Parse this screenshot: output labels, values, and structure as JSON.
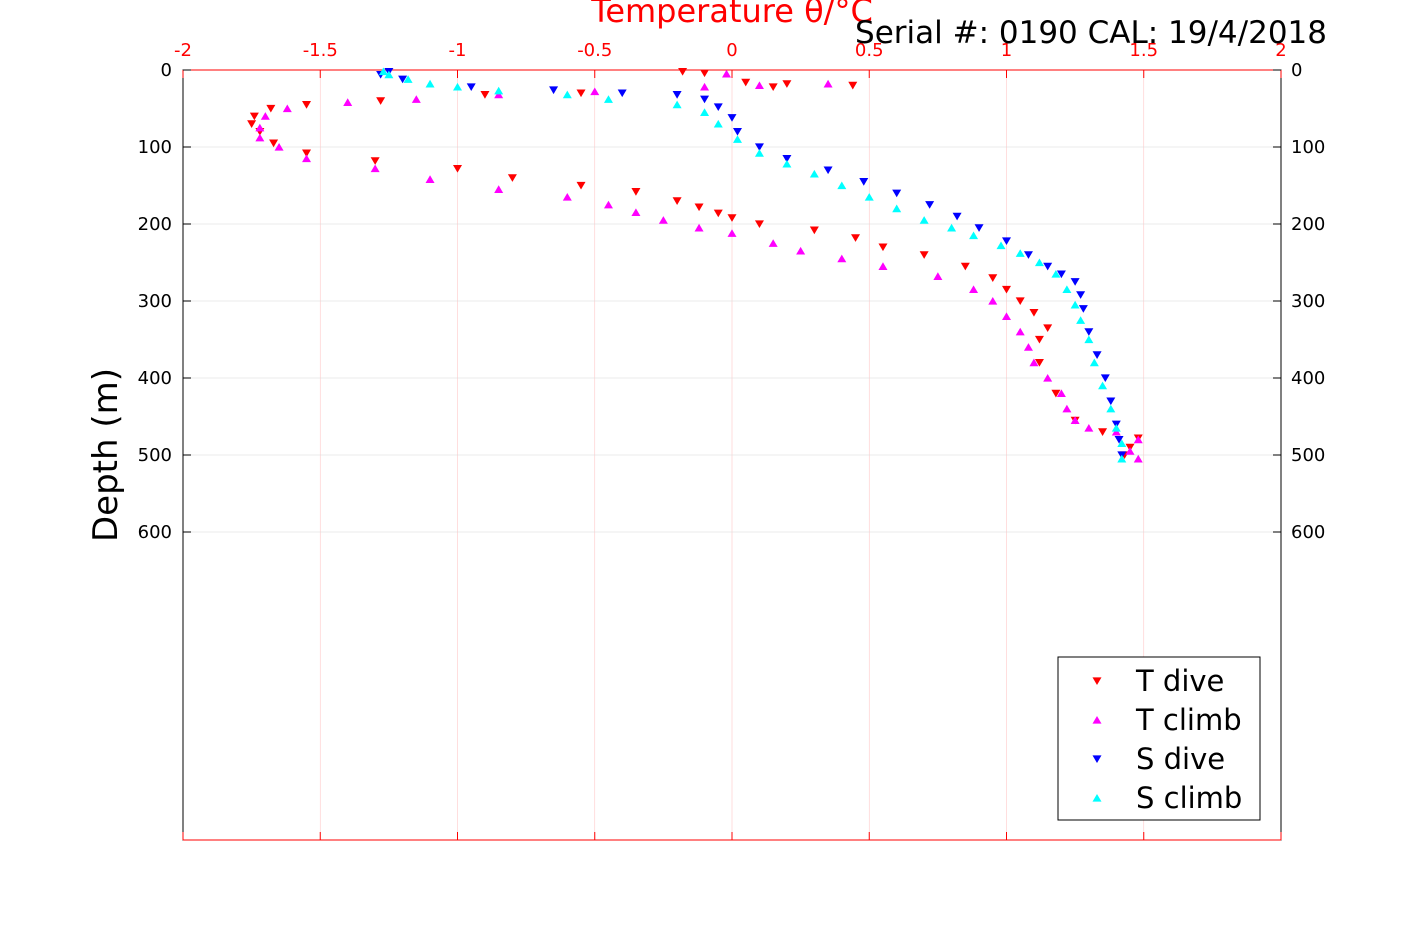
{
  "chart_data": {
    "type": "scatter",
    "subtitle": "Serial #: 0190  CAL: 19/4/2018",
    "xlabel": "Temperature θ/°C",
    "ylabel": "Depth (m)",
    "xlim": [
      -2,
      2
    ],
    "ylim": [
      0,
      1000
    ],
    "y_reversed": true,
    "x_ticks": [
      "-2",
      "-1.5",
      "-1",
      "-0.5",
      "0",
      "0.5",
      "1",
      "1.5",
      "2"
    ],
    "y_ticks": [
      "0",
      "100",
      "200",
      "300",
      "400",
      "500",
      "600"
    ],
    "grid": true,
    "legend_position": "bottom-right",
    "series": [
      {
        "name": "T dive",
        "color": "#ff0000",
        "marker": "triangle-down",
        "points": [
          [
            -0.18,
            2
          ],
          [
            -0.1,
            4
          ],
          [
            0.05,
            16
          ],
          [
            0.2,
            18
          ],
          [
            0.44,
            20
          ],
          [
            0.15,
            22
          ],
          [
            -0.55,
            30
          ],
          [
            -0.9,
            32
          ],
          [
            -1.28,
            40
          ],
          [
            -1.55,
            45
          ],
          [
            -1.68,
            50
          ],
          [
            -1.74,
            60
          ],
          [
            -1.75,
            70
          ],
          [
            -1.72,
            80
          ],
          [
            -1.67,
            95
          ],
          [
            -1.55,
            108
          ],
          [
            -1.3,
            118
          ],
          [
            -1.0,
            128
          ],
          [
            -0.8,
            140
          ],
          [
            -0.55,
            150
          ],
          [
            -0.35,
            158
          ],
          [
            -0.2,
            170
          ],
          [
            -0.12,
            178
          ],
          [
            -0.05,
            186
          ],
          [
            0.0,
            192
          ],
          [
            0.1,
            200
          ],
          [
            0.3,
            208
          ],
          [
            0.45,
            218
          ],
          [
            0.55,
            230
          ],
          [
            0.7,
            240
          ],
          [
            0.85,
            255
          ],
          [
            0.95,
            270
          ],
          [
            1.0,
            285
          ],
          [
            1.05,
            300
          ],
          [
            1.1,
            315
          ],
          [
            1.15,
            335
          ],
          [
            1.12,
            350
          ],
          [
            1.12,
            380
          ],
          [
            1.18,
            420
          ],
          [
            1.25,
            455
          ],
          [
            1.35,
            470
          ],
          [
            1.48,
            478
          ],
          [
            1.45,
            490
          ],
          [
            1.43,
            500
          ]
        ]
      },
      {
        "name": "T climb",
        "color": "#ff00ff",
        "marker": "triangle-up",
        "points": [
          [
            1.48,
            505
          ],
          [
            1.45,
            495
          ],
          [
            1.48,
            480
          ],
          [
            1.4,
            470
          ],
          [
            1.3,
            465
          ],
          [
            1.25,
            455
          ],
          [
            1.22,
            440
          ],
          [
            1.2,
            420
          ],
          [
            1.15,
            400
          ],
          [
            1.1,
            380
          ],
          [
            1.08,
            360
          ],
          [
            1.05,
            340
          ],
          [
            1.0,
            320
          ],
          [
            0.95,
            300
          ],
          [
            0.88,
            285
          ],
          [
            0.75,
            268
          ],
          [
            0.55,
            255
          ],
          [
            0.4,
            245
          ],
          [
            0.25,
            235
          ],
          [
            0.15,
            225
          ],
          [
            0.0,
            212
          ],
          [
            -0.12,
            205
          ],
          [
            -0.25,
            195
          ],
          [
            -0.35,
            185
          ],
          [
            -0.45,
            175
          ],
          [
            -0.6,
            165
          ],
          [
            -0.85,
            155
          ],
          [
            -1.1,
            142
          ],
          [
            -1.3,
            128
          ],
          [
            -1.55,
            115
          ],
          [
            -1.65,
            100
          ],
          [
            -1.72,
            88
          ],
          [
            -1.72,
            75
          ],
          [
            -1.7,
            60
          ],
          [
            -1.62,
            50
          ],
          [
            -1.4,
            42
          ],
          [
            -1.15,
            38
          ],
          [
            -0.85,
            32
          ],
          [
            -0.5,
            28
          ],
          [
            -0.1,
            22
          ],
          [
            0.1,
            20
          ],
          [
            0.35,
            18
          ],
          [
            -0.02,
            5
          ]
        ]
      },
      {
        "name": "S dive",
        "color": "#0000ff",
        "marker": "triangle-down",
        "points": [
          [
            -1.25,
            2
          ],
          [
            -1.28,
            6
          ],
          [
            -1.2,
            12
          ],
          [
            -0.95,
            22
          ],
          [
            -0.65,
            26
          ],
          [
            -0.4,
            30
          ],
          [
            -0.2,
            32
          ],
          [
            -0.1,
            38
          ],
          [
            -0.05,
            48
          ],
          [
            0.0,
            62
          ],
          [
            0.02,
            80
          ],
          [
            0.1,
            100
          ],
          [
            0.2,
            115
          ],
          [
            0.35,
            130
          ],
          [
            0.48,
            145
          ],
          [
            0.6,
            160
          ],
          [
            0.72,
            175
          ],
          [
            0.82,
            190
          ],
          [
            0.9,
            205
          ],
          [
            1.0,
            222
          ],
          [
            1.08,
            240
          ],
          [
            1.15,
            255
          ],
          [
            1.2,
            265
          ],
          [
            1.25,
            275
          ],
          [
            1.27,
            292
          ],
          [
            1.28,
            310
          ],
          [
            1.3,
            340
          ],
          [
            1.33,
            370
          ],
          [
            1.36,
            400
          ],
          [
            1.38,
            430
          ],
          [
            1.4,
            460
          ],
          [
            1.41,
            480
          ],
          [
            1.42,
            500
          ]
        ]
      },
      {
        "name": "S climb",
        "color": "#00ffff",
        "marker": "triangle-up",
        "points": [
          [
            1.42,
            505
          ],
          [
            1.42,
            485
          ],
          [
            1.4,
            465
          ],
          [
            1.38,
            440
          ],
          [
            1.35,
            410
          ],
          [
            1.32,
            380
          ],
          [
            1.3,
            350
          ],
          [
            1.27,
            325
          ],
          [
            1.25,
            305
          ],
          [
            1.22,
            285
          ],
          [
            1.18,
            265
          ],
          [
            1.12,
            250
          ],
          [
            1.05,
            238
          ],
          [
            0.98,
            228
          ],
          [
            0.88,
            215
          ],
          [
            0.8,
            205
          ],
          [
            0.7,
            195
          ],
          [
            0.6,
            180
          ],
          [
            0.5,
            165
          ],
          [
            0.4,
            150
          ],
          [
            0.3,
            135
          ],
          [
            0.2,
            122
          ],
          [
            0.1,
            108
          ],
          [
            0.02,
            90
          ],
          [
            -0.05,
            70
          ],
          [
            -0.1,
            55
          ],
          [
            -0.2,
            45
          ],
          [
            -0.45,
            38
          ],
          [
            -0.6,
            32
          ],
          [
            -0.85,
            27
          ],
          [
            -1.0,
            22
          ],
          [
            -1.1,
            18
          ],
          [
            -1.18,
            12
          ],
          [
            -1.25,
            6
          ],
          [
            -1.27,
            2
          ]
        ]
      }
    ]
  }
}
